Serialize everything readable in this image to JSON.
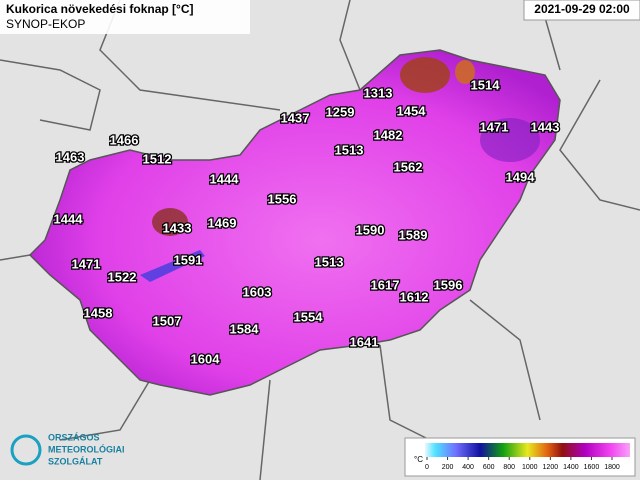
{
  "header": {
    "title": "Kukorica növekedési foknap [°C]",
    "source": "SYNOP-EKOP",
    "datetime": "2021-09-29 02:00"
  },
  "stations": [
    1463,
    1466,
    1512,
    1444,
    1444,
    1433,
    1469,
    1471,
    1522,
    1591,
    1458,
    1507,
    1603,
    1584,
    1604,
    1556,
    1513,
    1554,
    1437,
    1259,
    1313,
    1454,
    1482,
    1513,
    1562,
    1514,
    1471,
    1443,
    1494,
    1590,
    1589,
    1617,
    1612,
    1596,
    1641
  ],
  "legend": {
    "unit": "°C",
    "ticks": [
      0,
      200,
      400,
      600,
      800,
      1000,
      1200,
      1400,
      1600,
      1800
    ]
  },
  "logo": {
    "lines": [
      "ORSZÁGOS",
      "METEOROLÓGIAI",
      "SZOLGÁLAT"
    ]
  }
}
